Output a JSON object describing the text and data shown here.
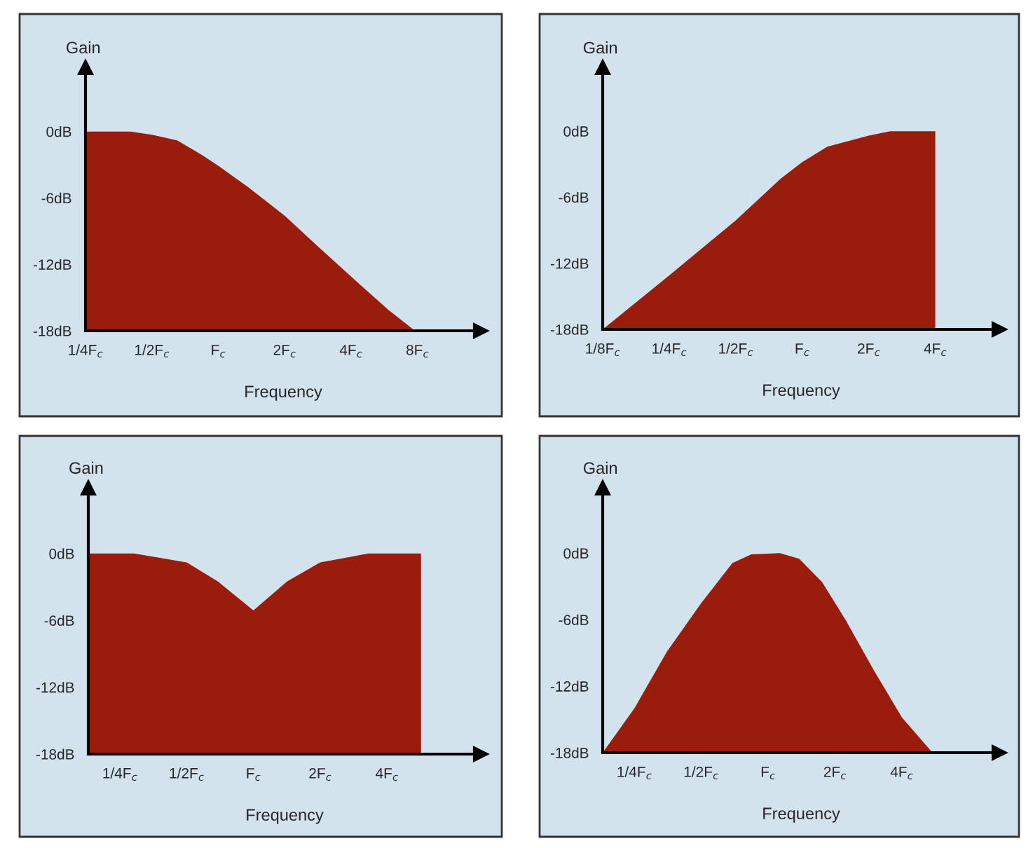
{
  "chart_data": [
    {
      "type": "area",
      "log": "x",
      "xlabel": "Frequency",
      "ylabel": "Gain",
      "xlim": [
        0.25,
        15.5
      ],
      "ylim": [
        -18,
        5.8
      ],
      "xticks": [
        {
          "value": 0.25,
          "label": "1/4F$_{c}$"
        },
        {
          "value": 0.5,
          "label": "1/2F$_{c}$"
        },
        {
          "value": 1,
          "label": "F$_{c}$"
        },
        {
          "value": 2,
          "label": "2F$_{c}$"
        },
        {
          "value": 4,
          "label": "4F$_{c}$"
        },
        {
          "value": 8,
          "label": "8F$_{c}$"
        }
      ],
      "yticks": [
        {
          "value": 0,
          "label": "0dB"
        },
        {
          "value": -6,
          "label": "-6dB"
        },
        {
          "value": -12,
          "label": "-12dB"
        },
        {
          "value": -18,
          "label": "-18dB"
        }
      ],
      "series": [
        {
          "color": "#9a1c0c",
          "x": [
            0.25,
            0.25,
            0.4,
            0.5,
            0.65,
            0.84,
            1,
            1.36,
            2,
            2.8,
            4,
            5.9,
            7.8
          ],
          "values": [
            -18,
            0,
            0,
            -0.3,
            -0.8,
            -2.1,
            -3.1,
            -5.0,
            -7.6,
            -10.3,
            -13.1,
            -16.1,
            -18
          ]
        }
      ]
    },
    {
      "type": "area",
      "log": "x",
      "xlabel": "Frequency",
      "ylabel": "Gain",
      "xlim": [
        0.125,
        7.8
      ],
      "ylim": [
        -18,
        5.8
      ],
      "xticks": [
        {
          "value": 0.125,
          "label": "1/8F$_{c}$"
        },
        {
          "value": 0.25,
          "label": "1/4F$_{c}$"
        },
        {
          "value": 0.5,
          "label": "1/2F$_{c}$"
        },
        {
          "value": 1,
          "label": "F$_{c}$"
        },
        {
          "value": 2,
          "label": "2F$_{c}$"
        },
        {
          "value": 4,
          "label": "4F$_{c}$"
        }
      ],
      "yticks": [
        {
          "value": 0,
          "label": "0dB"
        },
        {
          "value": -6,
          "label": "-6dB"
        },
        {
          "value": -12,
          "label": "-12dB"
        },
        {
          "value": -18,
          "label": "-18dB"
        }
      ],
      "series": [
        {
          "color": "#9a1c0c",
          "x": [
            0.125,
            0.25,
            0.5,
            0.8,
            1,
            1.3,
            2,
            2.5,
            4,
            4
          ],
          "values": [
            -18,
            -13.1,
            -8.1,
            -4.3,
            -2.8,
            -1.4,
            -0.4,
            0,
            0,
            -18
          ]
        }
      ]
    },
    {
      "type": "area",
      "log": "x",
      "xlabel": "Frequency",
      "ylabel": "Gain",
      "xlim": [
        0.18,
        10.6
      ],
      "ylim": [
        -18,
        5.9
      ],
      "xticks": [
        {
          "value": 0.25,
          "label": "1/4F$_{c}$"
        },
        {
          "value": 0.5,
          "label": "1/2F$_{c}$"
        },
        {
          "value": 1,
          "label": "F$_{c}$"
        },
        {
          "value": 2,
          "label": "2F$_{c}$"
        },
        {
          "value": 4,
          "label": "4F$_{c}$"
        }
      ],
      "yticks": [
        {
          "value": 0,
          "label": "0dB"
        },
        {
          "value": -6,
          "label": "-6dB"
        },
        {
          "value": -12,
          "label": "-12dB"
        },
        {
          "value": -18,
          "label": "-18dB"
        }
      ],
      "series": [
        {
          "color": "#9a1c0c",
          "x": [
            0.18,
            0.18,
            0.29,
            0.5,
            0.69,
            1,
            1.42,
            2,
            3.3,
            5.7,
            5.7
          ],
          "values": [
            -18,
            0,
            0,
            -0.8,
            -2.5,
            -5.1,
            -2.5,
            -0.8,
            0,
            0,
            -18
          ]
        }
      ]
    },
    {
      "type": "area",
      "log": "x",
      "xlabel": "Frequency",
      "ylabel": "Gain",
      "xlim": [
        0.18,
        11
      ],
      "ylim": [
        -18,
        5.9
      ],
      "xticks": [
        {
          "value": 0.25,
          "label": "1/4F$_{c}$"
        },
        {
          "value": 0.5,
          "label": "1/2F$_{c}$"
        },
        {
          "value": 1,
          "label": "F$_{c}$"
        },
        {
          "value": 2,
          "label": "2F$_{c}$"
        },
        {
          "value": 4,
          "label": "4F$_{c}$"
        }
      ],
      "yticks": [
        {
          "value": 0,
          "label": "0dB"
        },
        {
          "value": -6,
          "label": "-6dB"
        },
        {
          "value": -12,
          "label": "-12dB"
        },
        {
          "value": -18,
          "label": "-18dB"
        }
      ],
      "series": [
        {
          "color": "#9a1c0c",
          "x": [
            0.18,
            0.25,
            0.35,
            0.5,
            0.69,
            0.84,
            1.13,
            1.38,
            1.75,
            2.23,
            3,
            4,
            5.5
          ],
          "values": [
            -18,
            -14,
            -8.9,
            -4.5,
            -0.9,
            -0.1,
            0,
            -0.5,
            -2.6,
            -6,
            -10.6,
            -14.8,
            -18
          ]
        }
      ]
    }
  ]
}
